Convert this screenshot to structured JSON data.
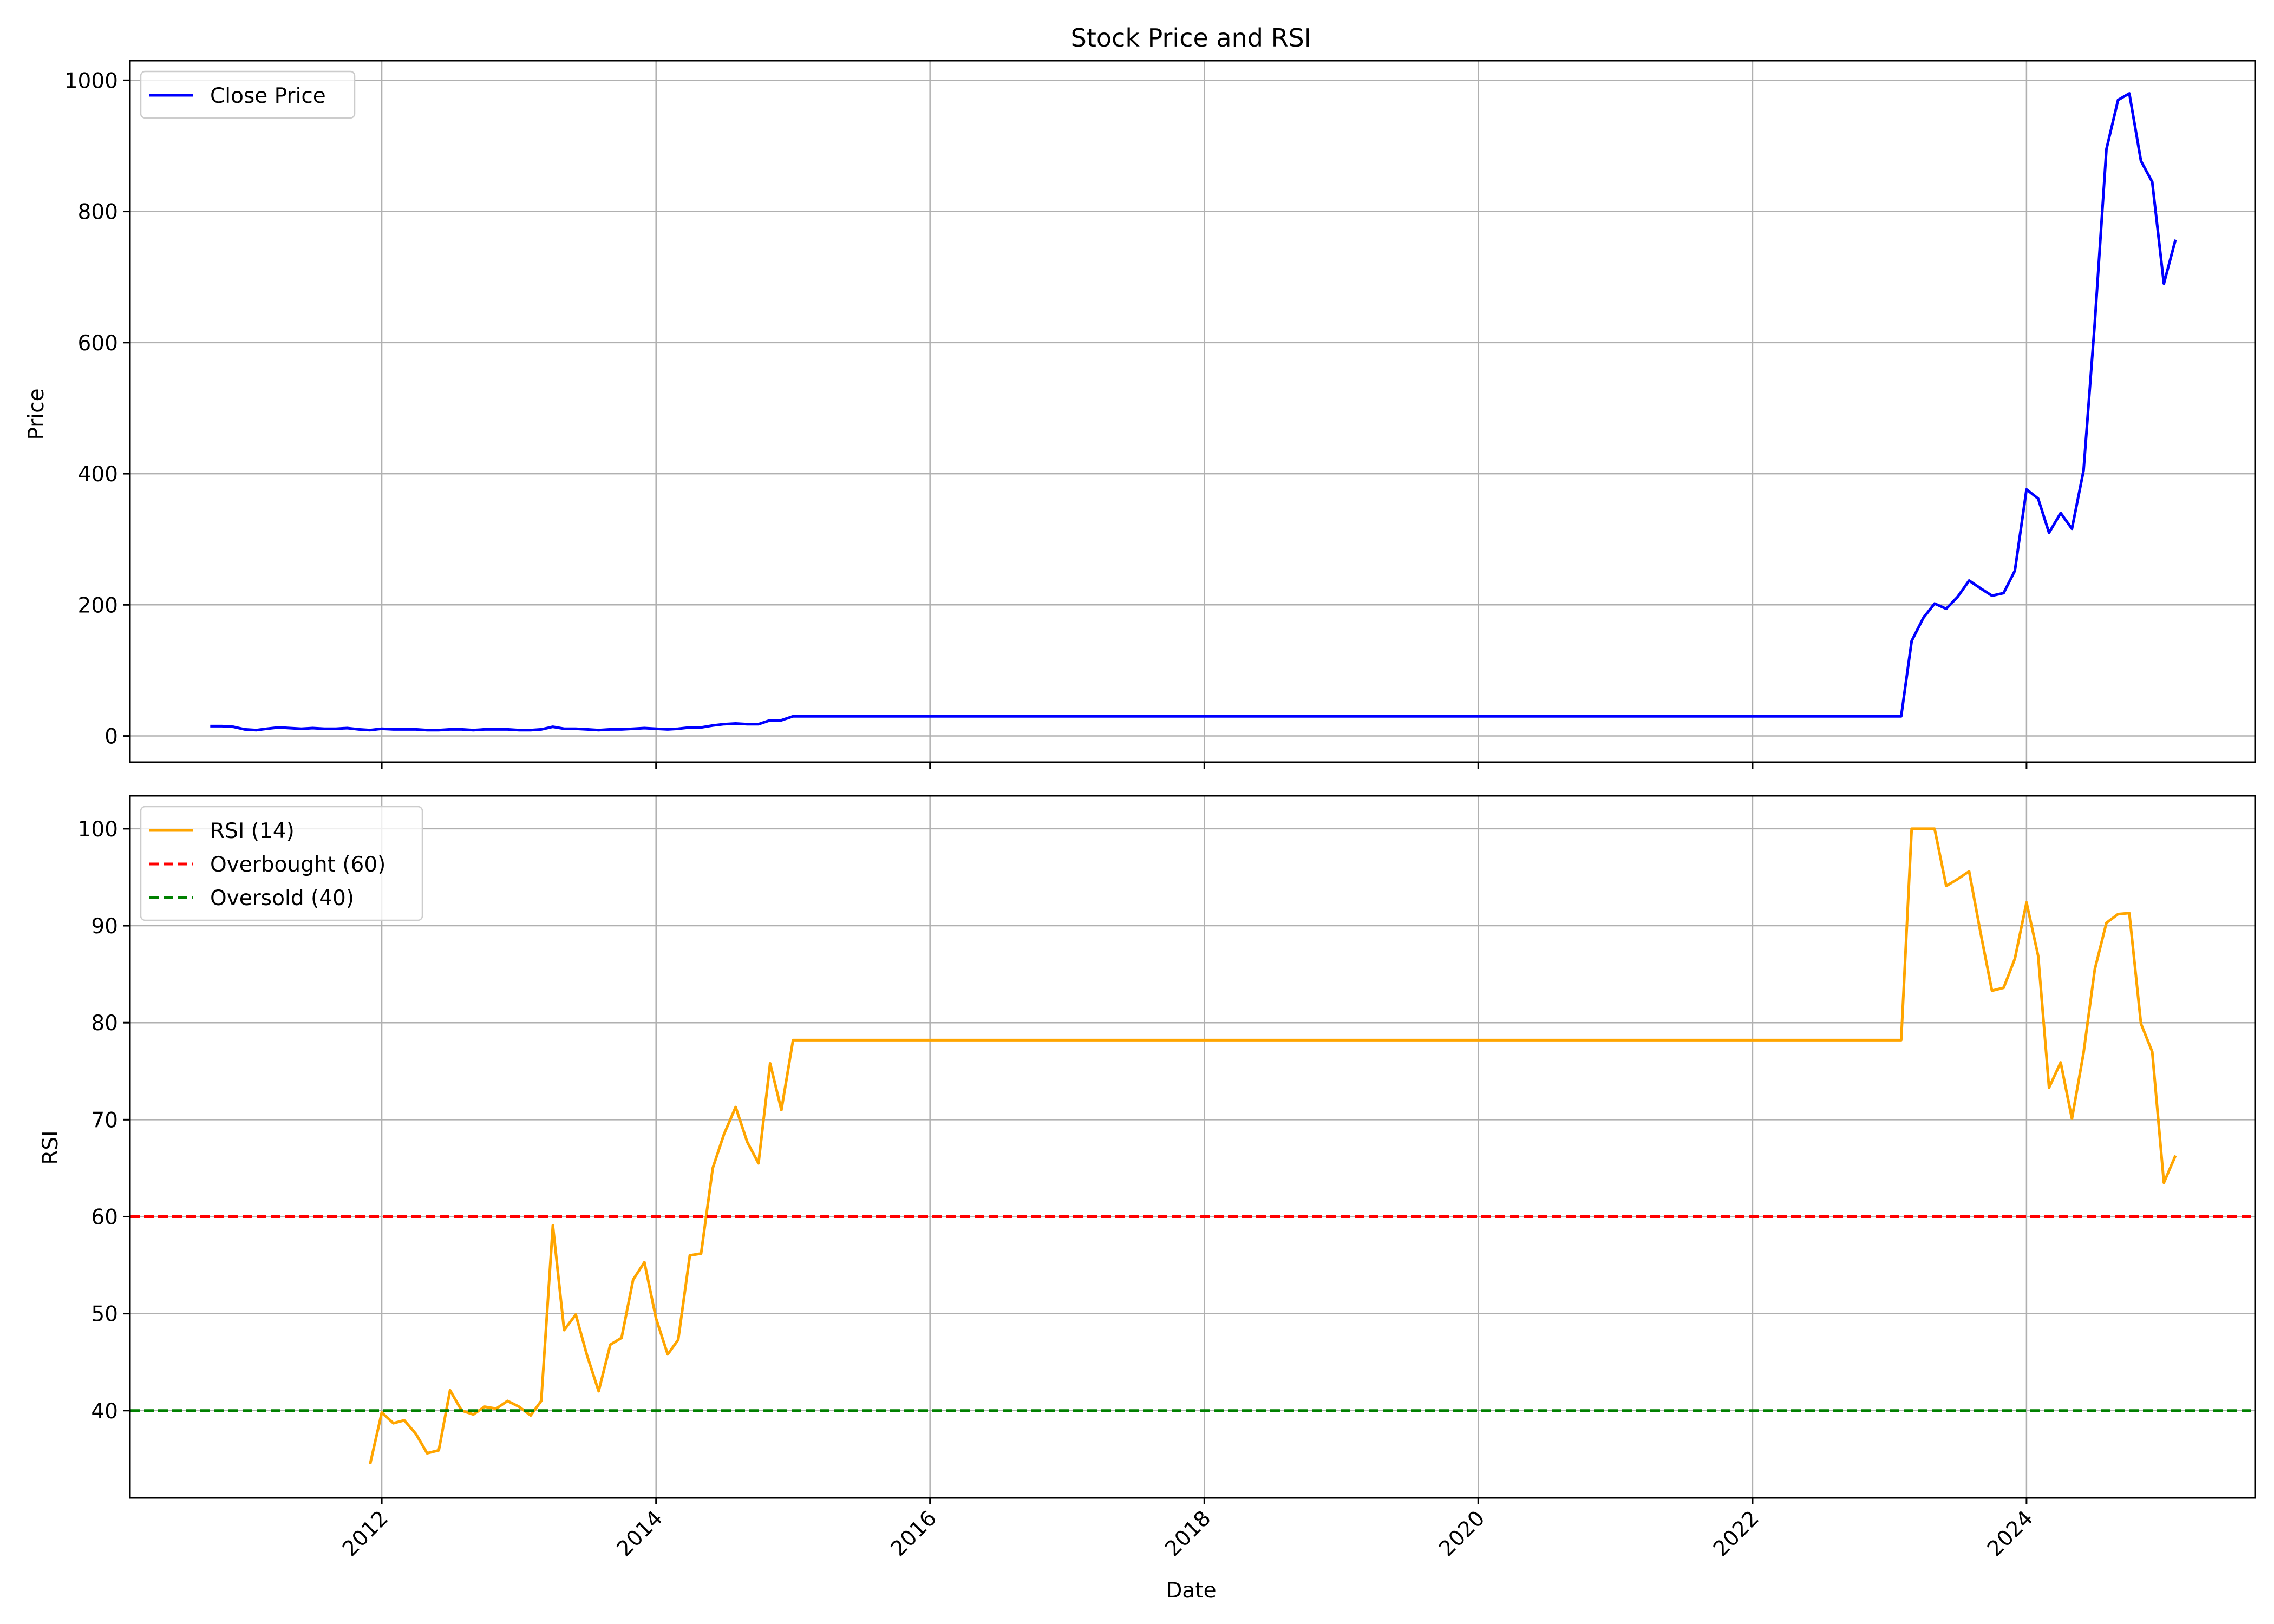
{
  "chart_data": [
    {
      "type": "line",
      "title": "Stock Price and RSI",
      "xlabel": "",
      "ylabel": "Price",
      "xlim": [
        "2010-03-01",
        "2025-09-01"
      ],
      "ylim": [
        -40,
        1030
      ],
      "yticks": [
        0,
        200,
        400,
        600,
        800,
        1000
      ],
      "grid": true,
      "legend_position": "top-left",
      "series": [
        {
          "name": "Close Price",
          "color": "#0000ff",
          "line_style": "solid",
          "x": [
            "2010-10-01",
            "2010-11-01",
            "2010-12-01",
            "2011-01-01",
            "2011-02-01",
            "2011-03-01",
            "2011-04-01",
            "2011-05-01",
            "2011-06-01",
            "2011-07-01",
            "2011-08-01",
            "2011-09-01",
            "2011-10-01",
            "2011-11-01",
            "2011-12-01",
            "2012-01-01",
            "2012-02-01",
            "2012-03-01",
            "2012-04-01",
            "2012-05-01",
            "2012-06-01",
            "2012-07-01",
            "2012-08-01",
            "2012-09-01",
            "2012-10-01",
            "2012-11-01",
            "2012-12-01",
            "2013-01-01",
            "2013-02-01",
            "2013-03-01",
            "2013-04-01",
            "2013-05-01",
            "2013-06-01",
            "2013-07-01",
            "2013-08-01",
            "2013-09-01",
            "2013-10-01",
            "2013-11-01",
            "2013-12-01",
            "2014-01-01",
            "2014-02-01",
            "2014-03-01",
            "2014-04-01",
            "2014-05-01",
            "2014-06-01",
            "2014-07-01",
            "2014-08-01",
            "2014-09-01",
            "2014-10-01",
            "2014-11-01",
            "2014-12-01",
            "2015-01-01",
            "2016-01-01",
            "2017-01-01",
            "2018-01-01",
            "2019-01-01",
            "2020-01-01",
            "2021-01-01",
            "2022-01-01",
            "2023-02-01",
            "2023-03-01",
            "2023-04-01",
            "2023-05-01",
            "2023-06-01",
            "2023-07-01",
            "2023-08-01",
            "2023-09-01",
            "2023-10-01",
            "2023-11-01",
            "2023-12-01",
            "2024-01-01",
            "2024-02-01",
            "2024-03-01",
            "2024-04-01",
            "2024-05-01",
            "2024-06-01",
            "2024-07-01",
            "2024-08-01",
            "2024-09-01",
            "2024-10-01",
            "2024-11-01",
            "2024-12-01",
            "2025-01-01",
            "2025-02-01"
          ],
          "y": [
            15,
            15,
            14,
            10,
            9,
            11,
            13,
            12,
            11,
            12,
            11,
            11,
            12,
            10,
            9,
            11,
            10,
            10,
            10,
            9,
            9,
            10,
            10,
            9,
            10,
            10,
            10,
            9,
            9,
            10,
            14,
            11,
            11,
            10,
            9,
            10,
            10,
            11,
            12,
            11,
            10,
            11,
            13,
            13,
            16,
            18,
            19,
            18,
            18,
            24,
            24,
            30,
            30,
            30,
            30,
            30,
            30,
            30,
            30,
            30,
            145,
            180,
            202,
            194,
            212,
            237,
            225,
            214,
            218,
            252,
            376,
            362,
            310,
            340,
            316,
            405,
            630,
            895,
            970,
            980,
            877,
            845,
            690,
            757
          ]
        }
      ]
    },
    {
      "type": "line",
      "title": "",
      "xlabel": "Date",
      "ylabel": "RSI",
      "xlim": [
        "2010-03-01",
        "2025-09-01"
      ],
      "ylim": [
        31,
        103.4
      ],
      "yticks": [
        40,
        50,
        60,
        70,
        80,
        90,
        100
      ],
      "xticks": [
        "2012",
        "2014",
        "2016",
        "2018",
        "2020",
        "2022",
        "2024"
      ],
      "grid": true,
      "legend_position": "top-left",
      "series": [
        {
          "name": "RSI (14)",
          "color": "#ffa500",
          "line_style": "solid",
          "x": [
            "2011-12-01",
            "2012-01-01",
            "2012-02-01",
            "2012-03-01",
            "2012-04-01",
            "2012-05-01",
            "2012-06-01",
            "2012-07-01",
            "2012-08-01",
            "2012-09-01",
            "2012-10-01",
            "2012-11-01",
            "2012-12-01",
            "2013-01-01",
            "2013-02-01",
            "2013-03-01",
            "2013-04-01",
            "2013-05-01",
            "2013-06-01",
            "2013-07-01",
            "2013-08-01",
            "2013-09-01",
            "2013-10-01",
            "2013-11-01",
            "2013-12-01",
            "2014-01-01",
            "2014-02-01",
            "2014-03-01",
            "2014-04-01",
            "2014-05-01",
            "2014-06-01",
            "2014-07-01",
            "2014-08-01",
            "2014-09-01",
            "2014-10-01",
            "2014-11-01",
            "2014-12-01",
            "2015-01-01",
            "2016-01-01",
            "2017-01-01",
            "2018-01-01",
            "2019-01-01",
            "2020-01-01",
            "2021-01-01",
            "2022-01-01",
            "2023-02-01",
            "2023-03-01",
            "2023-04-01",
            "2023-05-01",
            "2023-06-01",
            "2023-07-01",
            "2023-08-01",
            "2023-09-01",
            "2023-10-01",
            "2023-11-01",
            "2023-12-01",
            "2024-01-01",
            "2024-02-01",
            "2024-03-01",
            "2024-04-01",
            "2024-05-01",
            "2024-06-01",
            "2024-07-01",
            "2024-08-01",
            "2024-09-01",
            "2024-10-01",
            "2024-11-01",
            "2024-12-01",
            "2025-01-01",
            "2025-02-01"
          ],
          "y": [
            34.5,
            39.8,
            38.7,
            39.0,
            37.6,
            35.6,
            35.9,
            42.1,
            40.0,
            39.6,
            40.4,
            40.2,
            41.0,
            40.4,
            39.5,
            41.0,
            59.1,
            48.3,
            49.9,
            45.7,
            42.0,
            46.8,
            47.5,
            53.5,
            55.3,
            49.5,
            45.8,
            47.3,
            56.0,
            56.2,
            65.0,
            68.5,
            71.3,
            67.7,
            65.5,
            75.8,
            71.0,
            78.2,
            78.2,
            78.2,
            78.2,
            78.2,
            78.2,
            78.2,
            78.2,
            78.2,
            100.0,
            100.0,
            100.0,
            94.1,
            94.8,
            95.6,
            89.2,
            83.3,
            83.6,
            86.6,
            92.4,
            86.9,
            73.3,
            75.9,
            70.1,
            76.9,
            85.5,
            90.3,
            91.2,
            91.3,
            79.9,
            77.0,
            63.5,
            66.3
          ]
        },
        {
          "name": "Overbought (60)",
          "color": "#ff0000",
          "line_style": "dashed",
          "y": 60
        },
        {
          "name": "Oversold (40)",
          "color": "#008000",
          "line_style": "dashed",
          "y": 40
        }
      ]
    }
  ]
}
